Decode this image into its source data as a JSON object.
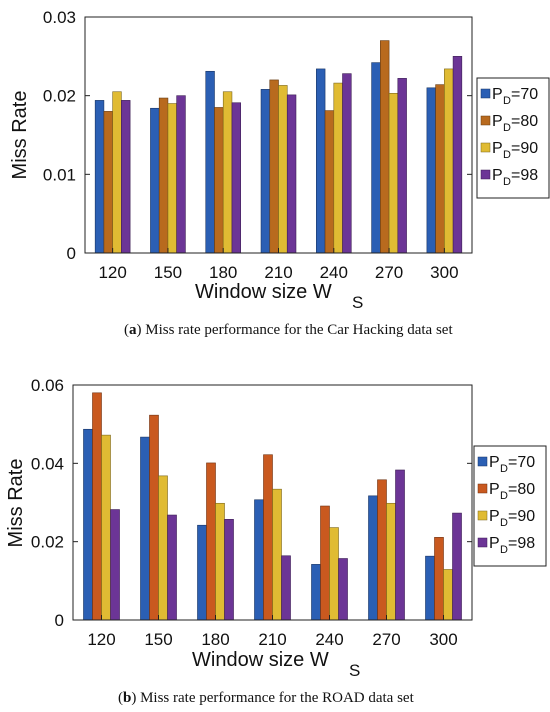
{
  "chart_data": [
    {
      "type": "bar",
      "caption_tag": "a",
      "caption_text": "Miss rate performance for the Car Hacking data set",
      "xlabel": "Window size W",
      "xlabel_sub": "S",
      "ylabel": "Miss Rate",
      "ylim": [
        0,
        0.03
      ],
      "yticks": [
        "0",
        "0.01",
        "0.02",
        "0.03"
      ],
      "categories": [
        "120",
        "150",
        "180",
        "210",
        "240",
        "270",
        "300"
      ],
      "grid": false,
      "legend_position": "right",
      "series": [
        {
          "name": "70",
          "color": "#2b5fb4",
          "values": [
            0.0194,
            0.0184,
            0.0231,
            0.0208,
            0.0234,
            0.0242,
            0.021
          ]
        },
        {
          "name": "80",
          "color": "#b86a1e",
          "values": [
            0.018,
            0.0197,
            0.0185,
            0.022,
            0.0181,
            0.027,
            0.0214
          ]
        },
        {
          "name": "90",
          "color": "#e0bb33",
          "values": [
            0.0205,
            0.019,
            0.0205,
            0.0213,
            0.0216,
            0.0203,
            0.0234
          ]
        },
        {
          "name": "98",
          "color": "#6c3596",
          "values": [
            0.0194,
            0.02,
            0.0191,
            0.0201,
            0.0228,
            0.0222,
            0.025
          ]
        }
      ]
    },
    {
      "type": "bar",
      "caption_tag": "b",
      "caption_text": "Miss rate performance for the ROAD data set",
      "xlabel": "Window size W",
      "xlabel_sub": "S",
      "ylabel": "Miss Rate",
      "ylim": [
        0,
        0.06
      ],
      "yticks": [
        "0",
        "0.02",
        "0.04",
        "0.06"
      ],
      "categories": [
        "120",
        "150",
        "180",
        "210",
        "240",
        "270",
        "300"
      ],
      "grid": false,
      "legend_position": "right",
      "series": [
        {
          "name": "70",
          "color": "#2b5fb4",
          "values": [
            0.0487,
            0.0467,
            0.0242,
            0.0307,
            0.0142,
            0.0317,
            0.0163
          ]
        },
        {
          "name": "80",
          "color": "#c9591f",
          "values": [
            0.058,
            0.0523,
            0.0401,
            0.0422,
            0.0291,
            0.0358,
            0.0211
          ]
        },
        {
          "name": "90",
          "color": "#e0bb33",
          "values": [
            0.0472,
            0.0368,
            0.0298,
            0.0334,
            0.0236,
            0.0298,
            0.0129
          ]
        },
        {
          "name": "98",
          "color": "#6c3596",
          "values": [
            0.0282,
            0.0268,
            0.0257,
            0.0164,
            0.0157,
            0.0383,
            0.0273
          ]
        }
      ]
    }
  ],
  "legend_prefix": "P",
  "legend_sub": "D"
}
